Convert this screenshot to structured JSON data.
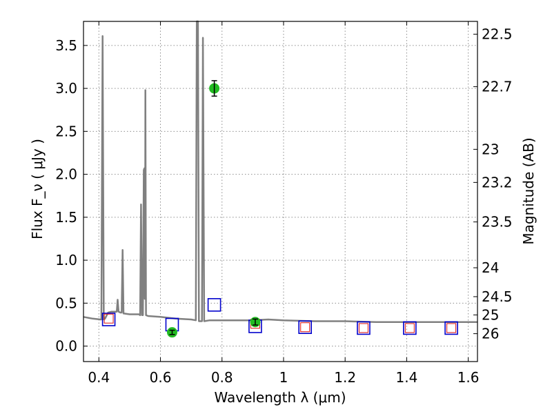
{
  "chart_data": {
    "type": "scatter",
    "xlabel": "Wavelength  λ (μm)",
    "ylabel": "Flux  F_ν  ( μJy )",
    "y2label": "Magnitude (AB)",
    "xlim": [
      0.35,
      1.63
    ],
    "ylim": [
      -0.18,
      3.78
    ],
    "grid": true,
    "x_ticks": [
      {
        "v": 0.4,
        "label": "0.4"
      },
      {
        "v": 0.6,
        "label": "0.6"
      },
      {
        "v": 0.8,
        "label": "0.8"
      },
      {
        "v": 1.0,
        "label": "1"
      },
      {
        "v": 1.2,
        "label": "1.2"
      },
      {
        "v": 1.4,
        "label": "1.4"
      },
      {
        "v": 1.6,
        "label": "1.6"
      }
    ],
    "y_ticks": [
      {
        "v": 0.0,
        "label": "0.0"
      },
      {
        "v": 0.5,
        "label": "0.5"
      },
      {
        "v": 1.0,
        "label": "1.0"
      },
      {
        "v": 1.5,
        "label": "1.5"
      },
      {
        "v": 2.0,
        "label": "2.0"
      },
      {
        "v": 2.5,
        "label": "2.5"
      },
      {
        "v": 3.0,
        "label": "3.0"
      },
      {
        "v": 3.5,
        "label": "3.5"
      }
    ],
    "y2_ticks": [
      {
        "label": "22.5"
      },
      {
        "label": "22.7"
      },
      {
        "label": "23"
      },
      {
        "label": "23.2"
      },
      {
        "label": "23.5"
      },
      {
        "label": "24"
      },
      {
        "label": "24.5"
      },
      {
        "label": "25"
      },
      {
        "label": "26"
      }
    ],
    "colors": {
      "spectrum": "#808080",
      "observed": "#22bb22",
      "model_band": "#0000cc",
      "model_band_inner": "#dd2222",
      "grid": "#8c8c8c"
    },
    "series": [
      {
        "kind": "line",
        "points": [
          [
            0.35,
            0.34
          ],
          [
            0.38,
            0.32
          ],
          [
            0.405,
            0.31
          ],
          [
            0.408,
            0.31
          ],
          [
            0.412,
            3.61
          ],
          [
            0.416,
            0.31
          ],
          [
            0.42,
            0.32
          ],
          [
            0.43,
            0.39
          ],
          [
            0.44,
            0.4
          ],
          [
            0.455,
            0.4
          ],
          [
            0.458,
            0.4
          ],
          [
            0.461,
            0.54
          ],
          [
            0.464,
            0.4
          ],
          [
            0.47,
            0.39
          ],
          [
            0.474,
            0.39
          ],
          [
            0.477,
            1.12
          ],
          [
            0.48,
            0.38
          ],
          [
            0.5,
            0.37
          ],
          [
            0.53,
            0.37
          ],
          [
            0.534,
            0.36
          ],
          [
            0.537,
            1.65
          ],
          [
            0.54,
            0.36
          ],
          [
            0.543,
            0.36
          ],
          [
            0.546,
            2.05
          ],
          [
            0.548,
            2.07
          ],
          [
            0.549,
            0.55
          ],
          [
            0.55,
            0.6
          ],
          [
            0.551,
            2.98
          ],
          [
            0.553,
            0.36
          ],
          [
            0.56,
            0.35
          ],
          [
            0.6,
            0.34
          ],
          [
            0.65,
            0.32
          ],
          [
            0.7,
            0.31
          ],
          [
            0.715,
            0.3
          ],
          [
            0.718,
            3.78
          ],
          [
            0.722,
            3.78
          ],
          [
            0.725,
            0.29
          ],
          [
            0.735,
            0.29
          ],
          [
            0.738,
            3.59
          ],
          [
            0.742,
            0.29
          ],
          [
            0.76,
            0.3
          ],
          [
            0.8,
            0.3
          ],
          [
            0.85,
            0.3
          ],
          [
            0.9,
            0.3
          ],
          [
            0.95,
            0.31
          ],
          [
            1.0,
            0.3
          ],
          [
            1.1,
            0.29
          ],
          [
            1.2,
            0.29
          ],
          [
            1.3,
            0.28
          ],
          [
            1.4,
            0.28
          ],
          [
            1.5,
            0.28
          ],
          [
            1.63,
            0.28
          ]
        ]
      },
      {
        "kind": "errorbar",
        "points": [
          {
            "x": 0.638,
            "y": 0.16,
            "err": 0.025
          },
          {
            "x": 0.775,
            "y": 3.0,
            "err": 0.09
          },
          {
            "x": 0.908,
            "y": 0.28,
            "err": 0.035
          }
        ]
      },
      {
        "kind": "open-square",
        "points": [
          {
            "x": 0.432,
            "y": 0.31
          },
          {
            "x": 0.638,
            "y": 0.25
          },
          {
            "x": 0.775,
            "y": 0.48
          },
          {
            "x": 0.908,
            "y": 0.23
          },
          {
            "x": 1.07,
            "y": 0.22
          },
          {
            "x": 1.26,
            "y": 0.21
          },
          {
            "x": 1.41,
            "y": 0.21
          },
          {
            "x": 1.545,
            "y": 0.21
          }
        ]
      },
      {
        "kind": "open-square-inner",
        "points": [
          {
            "x": 0.432,
            "y": 0.32
          },
          {
            "x": 0.908,
            "y": 0.26
          },
          {
            "x": 1.07,
            "y": 0.22
          },
          {
            "x": 1.26,
            "y": 0.21
          },
          {
            "x": 1.41,
            "y": 0.21
          },
          {
            "x": 1.545,
            "y": 0.21
          }
        ]
      }
    ]
  }
}
